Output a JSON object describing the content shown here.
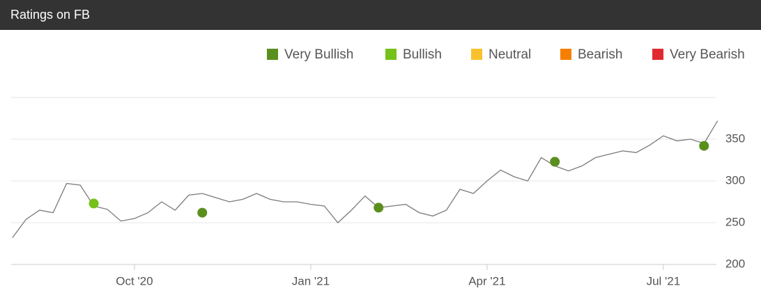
{
  "header": {
    "title": "Ratings on FB"
  },
  "chart_data": {
    "type": "line",
    "categories": [
      null,
      null,
      null,
      null,
      null,
      null,
      null,
      null,
      null,
      "Oct '20",
      null,
      null,
      null,
      null,
      null,
      null,
      null,
      null,
      null,
      null,
      null,
      null,
      "Jan '21",
      null,
      null,
      null,
      null,
      null,
      null,
      null,
      null,
      null,
      null,
      null,
      null,
      "Apr '21",
      null,
      null,
      null,
      null,
      null,
      null,
      null,
      null,
      null,
      null,
      null,
      null,
      "Jul '21",
      null,
      null,
      null,
      null
    ],
    "values": [
      232,
      254,
      265,
      262,
      297,
      295,
      270,
      266,
      252,
      255,
      262,
      275,
      265,
      283,
      285,
      280,
      275,
      278,
      285,
      278,
      275,
      275,
      272,
      270,
      250,
      265,
      282,
      268,
      270,
      272,
      262,
      258,
      265,
      290,
      285,
      300,
      313,
      305,
      300,
      328,
      318,
      312,
      318,
      328,
      332,
      336,
      334,
      343,
      354,
      348,
      350,
      345,
      372
    ],
    "color": "#7a7a7a",
    "series": [
      {
        "name": "Very Bullish",
        "color": "#5a8f1e",
        "values": [
          null,
          null,
          null,
          null,
          null,
          null,
          null,
          null,
          null,
          null,
          null,
          null,
          null,
          null,
          262,
          null,
          null,
          null,
          null,
          null,
          null,
          null,
          null,
          null,
          null,
          null,
          null,
          268,
          null,
          null,
          null,
          null,
          null,
          null,
          null,
          null,
          null,
          null,
          null,
          null,
          323,
          null,
          null,
          null,
          null,
          null,
          null,
          null,
          null,
          null,
          null,
          342,
          null
        ]
      },
      {
        "name": "Bullish",
        "color": "#76c11a",
        "values": [
          null,
          null,
          null,
          null,
          null,
          null,
          273,
          null,
          null,
          null,
          null,
          null,
          null,
          null,
          null,
          null,
          null,
          null,
          null,
          null,
          null,
          null,
          null,
          null,
          null,
          null,
          null,
          null,
          null,
          null,
          null,
          null,
          null,
          null,
          null,
          null,
          null,
          null,
          null,
          null,
          null,
          null,
          null,
          null,
          null,
          null,
          null,
          null,
          null,
          null,
          null,
          null,
          null
        ]
      },
      {
        "name": "Neutral",
        "color": "#f8c12d",
        "values": [
          null,
          null,
          null,
          null,
          null,
          null,
          null,
          null,
          null,
          null,
          null,
          null,
          null,
          null,
          null,
          null,
          null,
          null,
          null,
          null,
          null,
          null,
          null,
          null,
          null,
          null,
          null,
          null,
          null,
          null,
          null,
          null,
          null,
          null,
          null,
          null,
          null,
          null,
          null,
          null,
          null,
          null,
          null,
          null,
          null,
          null,
          null,
          null,
          null,
          null,
          null,
          null,
          null
        ]
      },
      {
        "name": "Bearish",
        "color": "#f77f00",
        "values": [
          null,
          null,
          null,
          null,
          null,
          null,
          null,
          null,
          null,
          null,
          null,
          null,
          null,
          null,
          null,
          null,
          null,
          null,
          null,
          null,
          null,
          null,
          null,
          null,
          null,
          null,
          null,
          null,
          null,
          null,
          null,
          null,
          null,
          null,
          null,
          null,
          null,
          null,
          null,
          null,
          null,
          null,
          null,
          null,
          null,
          null,
          null,
          null,
          null,
          null,
          null,
          null,
          null
        ]
      },
      {
        "name": "Very Bearish",
        "color": "#e02a2f",
        "values": [
          null,
          null,
          null,
          null,
          null,
          null,
          null,
          null,
          null,
          null,
          null,
          null,
          null,
          null,
          null,
          null,
          null,
          null,
          null,
          null,
          null,
          null,
          null,
          null,
          null,
          null,
          null,
          null,
          null,
          null,
          null,
          null,
          null,
          null,
          null,
          null,
          null,
          null,
          null,
          null,
          null,
          null,
          null,
          null,
          null,
          null,
          null,
          null,
          null,
          null,
          null,
          null,
          null
        ]
      }
    ],
    "ylim": [
      200,
      400
    ],
    "yticks": [
      200,
      250,
      300,
      350
    ],
    "grid": true
  }
}
